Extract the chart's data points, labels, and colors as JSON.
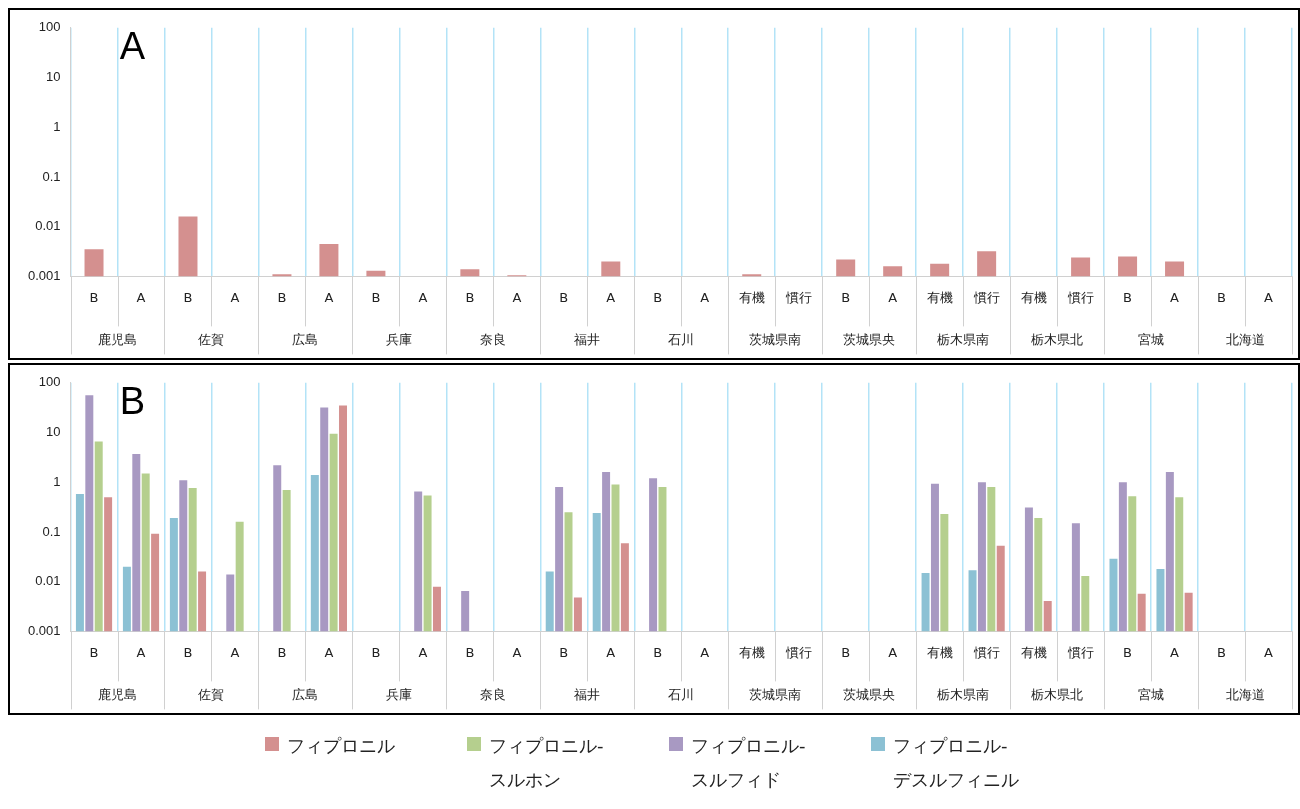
{
  "chart_data": [
    {
      "type": "bar",
      "title": "A",
      "categories": [
        "B",
        "A",
        "B",
        "A",
        "B",
        "A",
        "B",
        "A",
        "B",
        "A",
        "B",
        "A",
        "B",
        "A",
        "有機",
        "慣行",
        "B",
        "A",
        "有機",
        "慣行",
        "有機",
        "慣行",
        "B",
        "A",
        "B",
        "A"
      ],
      "annotations": [
        "鹿児島",
        "佐賀",
        "広島",
        "兵庫",
        "奈良",
        "福井",
        "石川",
        "茨城県南",
        "茨城県央",
        "栃木県南",
        "栃木県北",
        "宮城",
        "北海道"
      ],
      "series": [
        {
          "color": "#d4908f",
          "values": [
            0.0035,
            null,
            0.016,
            null,
            0.0011,
            0.0045,
            0.0013,
            null,
            0.0014,
            0.00105,
            null,
            0.002,
            null,
            null,
            0.0011,
            null,
            0.0022,
            0.0016,
            0.0018,
            0.0032,
            null,
            0.0024,
            0.0025,
            0.002,
            null,
            null
          ]
        }
      ],
      "log": "y",
      "ylim": [
        0.001,
        100
      ],
      "yticks": [
        0.001,
        0.01,
        0.1,
        1,
        10,
        100
      ],
      "grid": "x"
    },
    {
      "type": "bar",
      "title": "B",
      "categories": [
        "B",
        "A",
        "B",
        "A",
        "B",
        "A",
        "B",
        "A",
        "B",
        "A",
        "B",
        "A",
        "B",
        "A",
        "有機",
        "慣行",
        "B",
        "A",
        "有機",
        "慣行",
        "有機",
        "慣行",
        "B",
        "A",
        "B",
        "A"
      ],
      "annotations": [
        "鹿児島",
        "佐賀",
        "広島",
        "兵庫",
        "奈良",
        "福井",
        "石川",
        "茨城県南",
        "茨城県央",
        "栃木県南",
        "栃木県北",
        "宮城",
        "北海道"
      ],
      "series": [
        {
          "name": "フィプロニル-デスルフィニル",
          "color": "#8cc1d4",
          "values": [
            0.58,
            0.02,
            0.19,
            null,
            null,
            1.4,
            null,
            null,
            null,
            null,
            0.016,
            0.24,
            null,
            null,
            null,
            null,
            null,
            null,
            0.015,
            0.017,
            null,
            null,
            0.029,
            0.018,
            null,
            null
          ]
        },
        {
          "name": "フィプロニル-スルフィド",
          "color": "#a899c2",
          "values": [
            56,
            3.7,
            1.1,
            0.014,
            2.2,
            32,
            null,
            0.65,
            0.0065,
            null,
            0.8,
            1.6,
            1.2,
            null,
            null,
            null,
            null,
            null,
            0.93,
            1.0,
            0.31,
            0.15,
            1.0,
            1.6,
            null,
            null
          ]
        },
        {
          "name": "フィプロニル-スルホン",
          "color": "#b5cf8e",
          "values": [
            6.6,
            1.5,
            0.77,
            0.16,
            0.7,
            9.5,
            null,
            0.54,
            null,
            null,
            0.25,
            0.9,
            0.8,
            null,
            null,
            null,
            null,
            null,
            0.23,
            0.8,
            0.19,
            0.013,
            0.52,
            0.5,
            null,
            null
          ]
        },
        {
          "name": "フィプロニル",
          "color": "#d4908f",
          "values": [
            0.5,
            0.092,
            0.016,
            null,
            null,
            35,
            null,
            0.0079,
            null,
            null,
            0.0048,
            0.059,
            null,
            null,
            null,
            null,
            null,
            null,
            null,
            0.053,
            0.0041,
            null,
            0.0057,
            0.006,
            null,
            null
          ]
        }
      ],
      "log": "y",
      "ylim": [
        0.001,
        100
      ],
      "yticks": [
        0.001,
        0.01,
        0.1,
        1,
        10,
        100
      ],
      "grid": "x",
      "legend": "bottom"
    }
  ]
}
